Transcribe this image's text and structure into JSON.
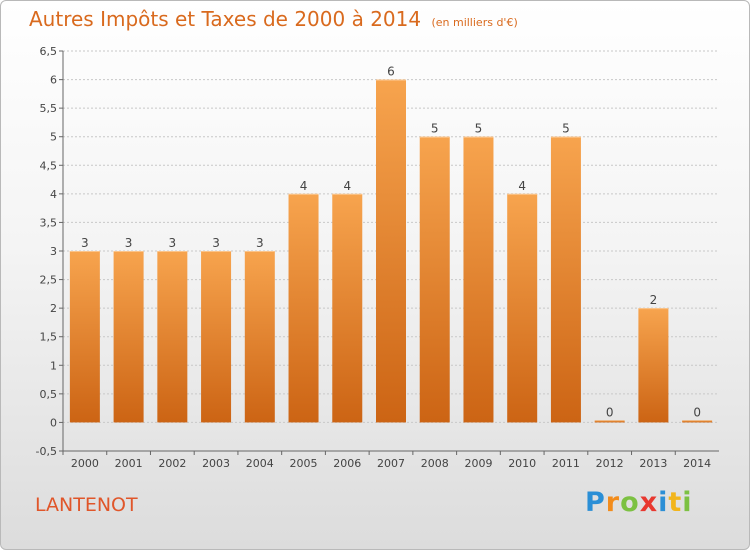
{
  "chart_data": {
    "type": "bar",
    "title": "Autres Impôts et Taxes de 2000 à 2014",
    "subtitle": "(en milliers d'€)",
    "categories": [
      "2000",
      "2001",
      "2002",
      "2003",
      "2004",
      "2005",
      "2006",
      "2007",
      "2008",
      "2009",
      "2010",
      "2011",
      "2012",
      "2013",
      "2014"
    ],
    "values": [
      3,
      3,
      3,
      3,
      3,
      4,
      4,
      6,
      5,
      5,
      4,
      5,
      0,
      2,
      0
    ],
    "data_labels": [
      "3",
      "3",
      "3",
      "3",
      "3",
      "4",
      "4",
      "6",
      "5",
      "5",
      "4",
      "5",
      "0",
      "2",
      "0"
    ],
    "ylim": [
      -0.5,
      6.5
    ],
    "yticks": [
      -0.5,
      0,
      0.5,
      1,
      1.5,
      2,
      2.5,
      3,
      3.5,
      4,
      4.5,
      5,
      5.5,
      6,
      6.5
    ],
    "ytick_labels": [
      "-0,5",
      "0",
      "0,5",
      "1",
      "1,5",
      "2",
      "2,5",
      "3",
      "3,5",
      "4",
      "4,5",
      "5",
      "5,5",
      "6",
      "6,5"
    ],
    "grid": "horizontal",
    "bar_color": "#f08a2c"
  },
  "location": "LANTENOT",
  "brand": {
    "letters": [
      "P",
      "r",
      "o",
      "x",
      "i",
      "t",
      "i"
    ],
    "colors": [
      "#2b8fd6",
      "#f28c1c",
      "#7cc142",
      "#e8382f",
      "#2b8fd6",
      "#f2b51c",
      "#7cc142"
    ]
  }
}
